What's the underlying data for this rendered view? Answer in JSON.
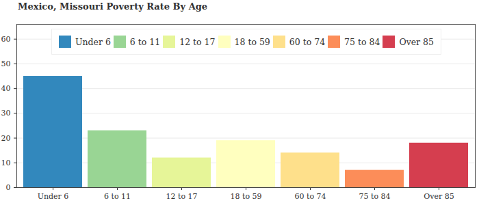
{
  "chart_data": {
    "type": "bar",
    "title": "Mexico, Missouri Poverty Rate By Age",
    "categories": [
      "Under 6",
      "6 to 11",
      "12 to 17",
      "18 to 59",
      "60 to 74",
      "75 to 84",
      "Over 85"
    ],
    "values": [
      45,
      23,
      12,
      19,
      14,
      7,
      18
    ],
    "colors": [
      "#3288bd",
      "#99d594",
      "#e6f598",
      "#ffffbf",
      "#fee08b",
      "#fc8d59",
      "#d53e4f"
    ],
    "ylim": [
      0,
      66
    ],
    "yticks": [
      0,
      10,
      20,
      30,
      40,
      50,
      60
    ],
    "grid": true,
    "legend": "top"
  }
}
